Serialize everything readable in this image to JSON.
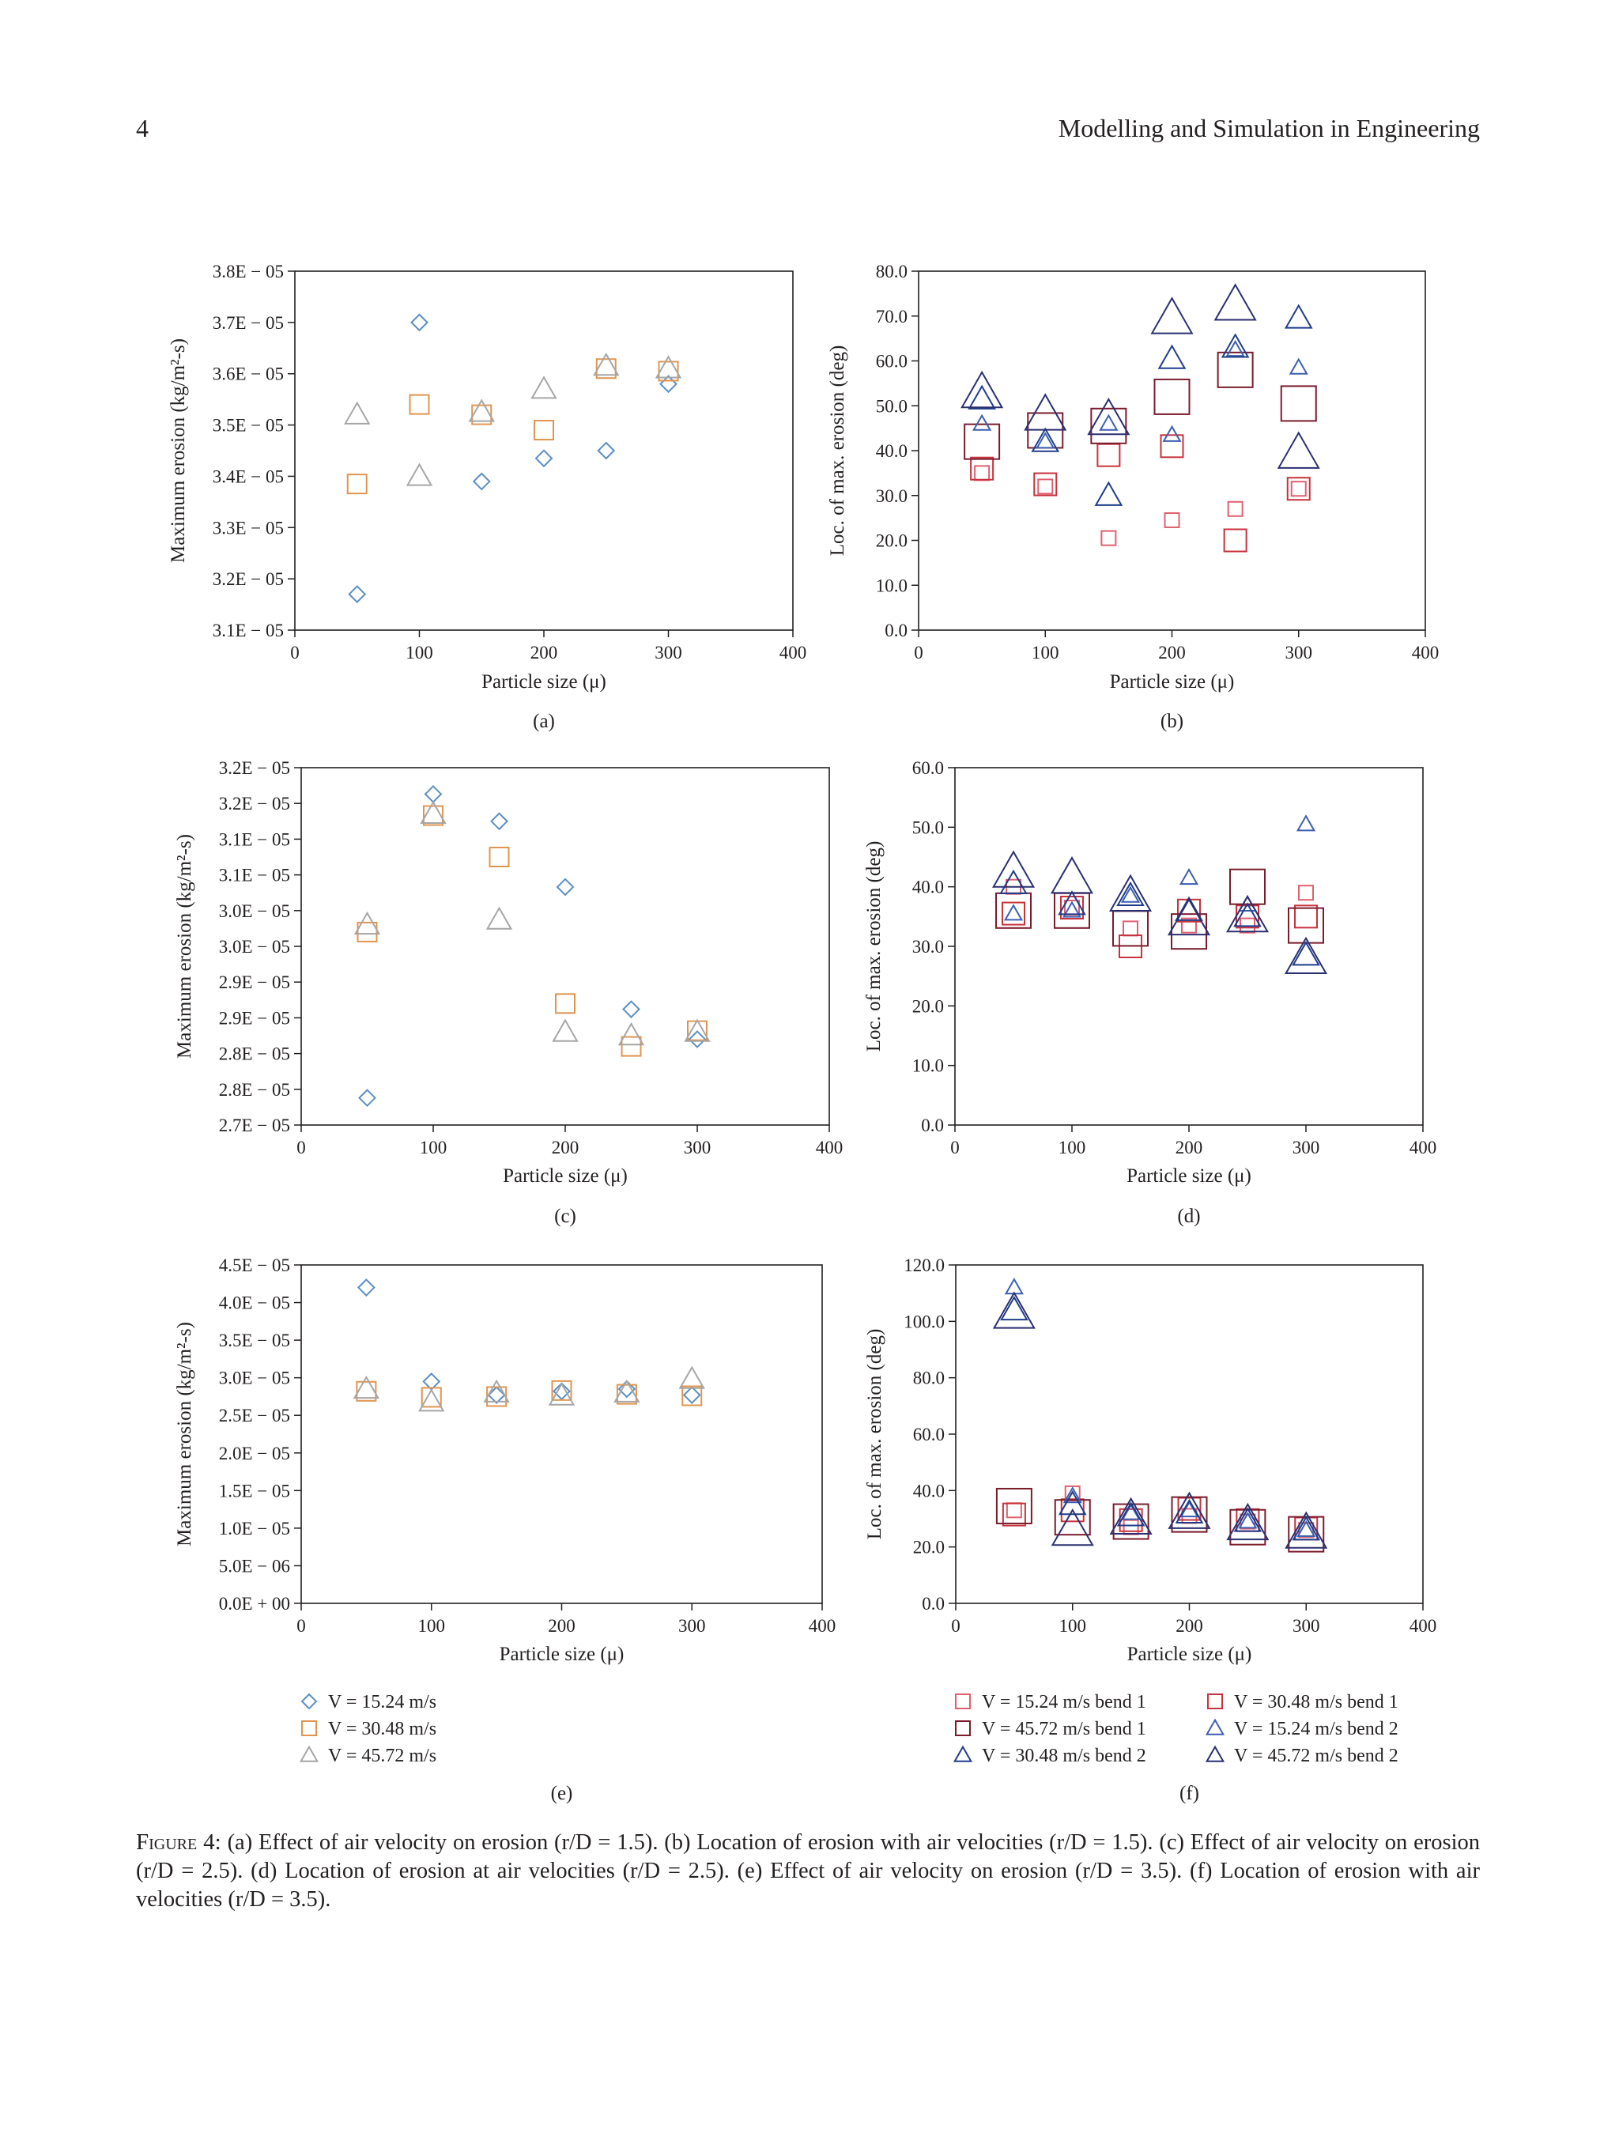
{
  "header": {
    "page_number": "4",
    "journal": "Modelling and Simulation in Engineering"
  },
  "colors": {
    "v15": "#5b8fc3",
    "v30": "#e0954f",
    "v45": "#a6a6a6",
    "b1_15": "#e06070",
    "b1_45": "#7a1c2c",
    "b1_30": "#c8323c",
    "b2_30": "#1f3d8a",
    "b2_15": "#3d5fb0",
    "b2_45": "#2a2f70"
  },
  "legend_left": [
    {
      "label": "V = 15.24 m/s",
      "marker": "diamond",
      "color_key": "v15"
    },
    {
      "label": "V = 30.48 m/s",
      "marker": "square",
      "color_key": "v30"
    },
    {
      "label": "V = 45.72 m/s",
      "marker": "triangle",
      "color_key": "v45"
    }
  ],
  "legend_right": [
    {
      "label": "V = 15.24 m/s bend 1",
      "marker": "square",
      "color_key": "b1_15"
    },
    {
      "label": "V = 30.48 m/s bend 1",
      "marker": "square",
      "color_key": "b1_30"
    },
    {
      "label": "V = 45.72 m/s bend 1",
      "marker": "square",
      "color_key": "b1_45"
    },
    {
      "label": "V = 15.24 m/s bend 2",
      "marker": "triangle",
      "color_key": "b2_15"
    },
    {
      "label": "V = 30.48 m/s bend 2",
      "marker": "triangle",
      "color_key": "b2_30"
    },
    {
      "label": "V = 45.72 m/s bend 2",
      "marker": "triangle",
      "color_key": "b2_45"
    }
  ],
  "caption": {
    "lead": "Figure 4:",
    "text": "(a) Effect of air velocity on erosion (r/D = 1.5). (b) Location of erosion with air velocities (r/D = 1.5). (c) Effect of air velocity on erosion (r/D = 2.5). (d) Location of erosion at air velocities (r/D = 2.5). (e) Effect of air velocity on erosion (r/D = 3.5). (f) Location of erosion with air velocities (r/D = 3.5)."
  },
  "chart_data": [
    {
      "id": "a",
      "type": "scatter",
      "panel_label": "(a)",
      "xlabel": "Particle size (μ)",
      "ylabel": "Maximum erosion (kg/m²-s)",
      "xlim": [
        0,
        400
      ],
      "ylim": [
        3.1e-05,
        3.8e-05
      ],
      "xticks": [
        0,
        100,
        200,
        300,
        400
      ],
      "xtick_labels": [
        "0",
        "100",
        "200",
        "300",
        "400"
      ],
      "yticks": [
        3.1e-05,
        3.2e-05,
        3.3e-05,
        3.4e-05,
        3.5e-05,
        3.6e-05,
        3.7e-05,
        3.8e-05
      ],
      "ytick_labels": [
        "3.1E − 05",
        "3.2E − 05",
        "3.3E − 05",
        "3.4E − 05",
        "3.5E − 05",
        "3.6E − 05",
        "3.7E − 05",
        "3.8E − 05"
      ],
      "series": [
        {
          "name": "V = 15.24 m/s",
          "marker": "diamond",
          "color_key": "v15",
          "x": [
            50,
            100,
            150,
            200,
            250,
            300
          ],
          "y": [
            3.17e-05,
            3.7e-05,
            3.39e-05,
            3.435e-05,
            3.45e-05,
            3.58e-05
          ]
        },
        {
          "name": "V = 30.48 m/s",
          "marker": "square",
          "color_key": "v30",
          "x": [
            50,
            100,
            150,
            200,
            250,
            300
          ],
          "y": [
            3.385e-05,
            3.54e-05,
            3.52e-05,
            3.49e-05,
            3.61e-05,
            3.605e-05
          ]
        },
        {
          "name": "V = 45.72 m/s",
          "marker": "triangle",
          "color_key": "v45",
          "x": [
            50,
            100,
            150,
            200,
            250,
            300
          ],
          "y": [
            3.52e-05,
            3.4e-05,
            3.525e-05,
            3.57e-05,
            3.615e-05,
            3.61e-05
          ]
        }
      ]
    },
    {
      "id": "b",
      "type": "scatter",
      "panel_label": "(b)",
      "xlabel": "Particle size (μ)",
      "ylabel": "Loc. of max. erosion (deg)",
      "xlim": [
        0,
        400
      ],
      "ylim": [
        0,
        80
      ],
      "xticks": [
        0,
        100,
        200,
        300,
        400
      ],
      "xtick_labels": [
        "0",
        "100",
        "200",
        "300",
        "400"
      ],
      "yticks": [
        0,
        10,
        20,
        30,
        40,
        50,
        60,
        70,
        80
      ],
      "ytick_labels": [
        "0.0",
        "10.0",
        "20.0",
        "30.0",
        "40.0",
        "50.0",
        "60.0",
        "70.0",
        "80.0"
      ],
      "series": [
        {
          "name": "V = 15.24 m/s bend 1",
          "marker": "square",
          "color_key": "b1_15",
          "size": "small",
          "x": [
            50,
            100,
            150,
            200,
            250,
            300
          ],
          "y": [
            35,
            32,
            20.5,
            24.5,
            27,
            31.5
          ]
        },
        {
          "name": "V = 30.48 m/s bend 1",
          "marker": "square",
          "color_key": "b1_30",
          "size": "medium",
          "x": [
            50,
            100,
            150,
            200,
            250,
            300
          ],
          "y": [
            36,
            32.5,
            39,
            41,
            20,
            31.5
          ]
        },
        {
          "name": "V = 45.72 m/s bend 1",
          "marker": "square",
          "color_key": "b1_45",
          "size": "large",
          "x": [
            50,
            100,
            150,
            200,
            250,
            300
          ],
          "y": [
            42,
            44.5,
            45.5,
            52,
            58,
            50.5
          ]
        },
        {
          "name": "V = 15.24 m/s bend 2",
          "marker": "triangle",
          "color_key": "b2_15",
          "size": "small",
          "x": [
            50,
            100,
            150,
            200,
            250,
            300
          ],
          "y": [
            46,
            42,
            46,
            43.5,
            62.5,
            58.5
          ]
        },
        {
          "name": "V = 30.48 m/s bend 2",
          "marker": "triangle",
          "color_key": "b2_30",
          "size": "medium",
          "x": [
            50,
            100,
            150,
            200,
            250,
            300
          ],
          "y": [
            51.5,
            42,
            30,
            60.5,
            63,
            69.5
          ]
        },
        {
          "name": "V = 45.72 m/s bend 2",
          "marker": "triangle",
          "color_key": "b2_45",
          "size": "large",
          "x": [
            50,
            100,
            150,
            200,
            250,
            300
          ],
          "y": [
            53,
            48,
            47,
            69.5,
            72.5,
            39.5
          ]
        }
      ]
    },
    {
      "id": "c",
      "type": "scatter",
      "panel_label": "(c)",
      "xlabel": "Particle size (μ)",
      "ylabel": "Maximum erosion (kg/m²-s)",
      "xlim": [
        0,
        400
      ],
      "ylim": [
        2.7e-05,
        3.2e-05
      ],
      "xticks": [
        0,
        100,
        200,
        300,
        400
      ],
      "xtick_labels": [
        "0",
        "100",
        "200",
        "300",
        "400"
      ],
      "yticks": [
        2.7e-05,
        2.75e-05,
        2.8e-05,
        2.85e-05,
        2.9e-05,
        2.95e-05,
        3e-05,
        3.05e-05,
        3.1e-05,
        3.15e-05,
        3.2e-05
      ],
      "ytick_labels": [
        "2.7E − 05",
        "2.8E − 05",
        "2.8E − 05",
        "2.9E − 05",
        "2.9E − 05",
        "3.0E − 05",
        "3.0E − 05",
        "3.1E − 05",
        "3.1E − 05",
        "3.2E − 05",
        "3.2E − 05"
      ],
      "series": [
        {
          "name": "V = 15.24 m/s",
          "marker": "diamond",
          "color_key": "v15",
          "x": [
            50,
            100,
            150,
            200,
            250,
            300
          ],
          "y": [
            2.738e-05,
            3.163e-05,
            3.125e-05,
            3.033e-05,
            2.862e-05,
            2.82e-05
          ]
        },
        {
          "name": "V = 30.48 m/s",
          "marker": "square",
          "color_key": "v30",
          "x": [
            50,
            100,
            150,
            200,
            250,
            300
          ],
          "y": [
            2.97e-05,
            3.133e-05,
            3.075e-05,
            2.87e-05,
            2.81e-05,
            2.832e-05
          ]
        },
        {
          "name": "V = 45.72 m/s",
          "marker": "triangle",
          "color_key": "v45",
          "x": [
            50,
            100,
            150,
            200,
            250,
            300
          ],
          "y": [
            2.98e-05,
            3.135e-05,
            2.987e-05,
            2.83e-05,
            2.825e-05,
            2.83e-05
          ]
        }
      ]
    },
    {
      "id": "d",
      "type": "scatter",
      "panel_label": "(d)",
      "xlabel": "Particle size (μ)",
      "ylabel": "Loc. of max. erosion (deg)",
      "xlim": [
        0,
        400
      ],
      "ylim": [
        0,
        60
      ],
      "xticks": [
        0,
        100,
        200,
        300,
        400
      ],
      "xtick_labels": [
        "0",
        "100",
        "200",
        "300",
        "400"
      ],
      "yticks": [
        0,
        10,
        20,
        30,
        40,
        50,
        60
      ],
      "ytick_labels": [
        "0.0",
        "10.0",
        "20.0",
        "30.0",
        "40.0",
        "50.0",
        "60.0"
      ],
      "series": [
        {
          "name": "V = 15.24 m/s bend 1",
          "marker": "square",
          "color_key": "b1_15",
          "size": "small",
          "x": [
            50,
            100,
            150,
            200,
            250,
            300
          ],
          "y": [
            40,
            36.5,
            33,
            33.5,
            33.5,
            39
          ]
        },
        {
          "name": "V = 30.48 m/s bend 1",
          "marker": "square",
          "color_key": "b1_30",
          "size": "medium",
          "x": [
            50,
            100,
            150,
            200,
            250,
            300
          ],
          "y": [
            35.5,
            36.5,
            30,
            36,
            35,
            35
          ]
        },
        {
          "name": "V = 45.72 m/s bend 1",
          "marker": "square",
          "color_key": "b1_45",
          "size": "large",
          "x": [
            50,
            100,
            150,
            200,
            250,
            300
          ],
          "y": [
            36,
            36,
            33,
            32.5,
            40,
            33.5
          ]
        },
        {
          "name": "V = 15.24 m/s bend 2",
          "marker": "triangle",
          "color_key": "b2_15",
          "size": "small",
          "x": [
            50,
            100,
            150,
            200,
            250,
            300
          ],
          "y": [
            35.5,
            36,
            38.5,
            41.5,
            37,
            50.5
          ]
        },
        {
          "name": "V = 30.48 m/s bend 2",
          "marker": "triangle",
          "color_key": "b2_30",
          "size": "medium",
          "x": [
            50,
            100,
            150,
            200,
            250,
            300
          ],
          "y": [
            40.5,
            37,
            38.5,
            36,
            35,
            28.5
          ]
        },
        {
          "name": "V = 45.72 m/s bend 2",
          "marker": "triangle",
          "color_key": "b2_45",
          "size": "large",
          "x": [
            50,
            100,
            150,
            200,
            250,
            300
          ],
          "y": [
            42.5,
            41.5,
            38.5,
            34.5,
            35,
            28
          ]
        }
      ]
    },
    {
      "id": "e",
      "type": "scatter",
      "panel_label": "(e)",
      "xlabel": "Particle size (μ)",
      "ylabel": "Maximum erosion (kg/m²-s)",
      "xlim": [
        0,
        400
      ],
      "ylim": [
        0,
        4.5e-05
      ],
      "xticks": [
        0,
        100,
        200,
        300,
        400
      ],
      "xtick_labels": [
        "0",
        "100",
        "200",
        "300",
        "400"
      ],
      "yticks": [
        0,
        5e-06,
        1e-05,
        1.5e-05,
        2e-05,
        2.5e-05,
        3e-05,
        3.5e-05,
        4e-05,
        4.5e-05
      ],
      "ytick_labels": [
        "0.0E + 00",
        "5.0E − 06",
        "1.0E − 05",
        "1.5E − 05",
        "2.0E − 05",
        "2.5E − 05",
        "3.0E − 05",
        "3.5E − 05",
        "4.0E − 05",
        "4.5E − 05"
      ],
      "series": [
        {
          "name": "V = 15.24 m/s",
          "marker": "diamond",
          "color_key": "v15",
          "x": [
            50,
            100,
            150,
            200,
            250,
            300
          ],
          "y": [
            4.2e-05,
            2.95e-05,
            2.77e-05,
            2.82e-05,
            2.85e-05,
            2.77e-05
          ]
        },
        {
          "name": "V = 30.48 m/s",
          "marker": "square",
          "color_key": "v30",
          "x": [
            50,
            100,
            150,
            200,
            250,
            300
          ],
          "y": [
            2.82e-05,
            2.74e-05,
            2.75e-05,
            2.83e-05,
            2.78e-05,
            2.76e-05
          ]
        },
        {
          "name": "V = 45.72 m/s",
          "marker": "triangle",
          "color_key": "v45",
          "x": [
            50,
            100,
            150,
            200,
            250,
            300
          ],
          "y": [
            2.85e-05,
            2.68e-05,
            2.8e-05,
            2.76e-05,
            2.8e-05,
            2.98e-05
          ]
        }
      ]
    },
    {
      "id": "f",
      "type": "scatter",
      "panel_label": "(f)",
      "xlabel": "Particle size (μ)",
      "ylabel": "Loc. of max. erosion (deg)",
      "xlim": [
        0,
        400
      ],
      "ylim": [
        0,
        120
      ],
      "xticks": [
        0,
        100,
        200,
        300,
        400
      ],
      "xtick_labels": [
        "0",
        "100",
        "200",
        "300",
        "400"
      ],
      "yticks": [
        0,
        20,
        40,
        60,
        80,
        100,
        120
      ],
      "ytick_labels": [
        "0.0",
        "20.0",
        "40.0",
        "60.0",
        "80.0",
        "100.0",
        "120.0"
      ],
      "series": [
        {
          "name": "V = 15.24 m/s bend 1",
          "marker": "square",
          "color_key": "b1_15",
          "size": "small",
          "x": [
            50,
            100,
            150,
            200,
            250,
            300
          ],
          "y": [
            33,
            39,
            27,
            31,
            29,
            26
          ]
        },
        {
          "name": "V = 30.48 m/s bend 1",
          "marker": "square",
          "color_key": "b1_30",
          "size": "medium",
          "x": [
            50,
            100,
            150,
            200,
            250,
            300
          ],
          "y": [
            31.5,
            33,
            29.5,
            33.5,
            29.5,
            26.5
          ]
        },
        {
          "name": "V = 45.72 m/s bend 1",
          "marker": "square",
          "color_key": "b1_45",
          "size": "large",
          "x": [
            50,
            100,
            150,
            200,
            250,
            300
          ],
          "y": [
            34.5,
            30.5,
            29,
            31.5,
            27,
            24.5
          ]
        },
        {
          "name": "V = 15.24 m/s bend 2",
          "marker": "triangle",
          "color_key": "b2_15",
          "size": "small",
          "x": [
            50,
            100,
            150,
            200,
            250,
            300
          ],
          "y": [
            112,
            38,
            32,
            33,
            29,
            26
          ]
        },
        {
          "name": "V = 30.48 m/s bend 2",
          "marker": "triangle",
          "color_key": "b2_30",
          "size": "medium",
          "x": [
            50,
            100,
            150,
            200,
            250,
            300
          ],
          "y": [
            104,
            35,
            31,
            32,
            29,
            26
          ]
        },
        {
          "name": "V = 45.72 m/s bend 2",
          "marker": "triangle",
          "color_key": "b2_45",
          "size": "large",
          "x": [
            50,
            100,
            150,
            200,
            250,
            300
          ],
          "y": [
            103,
            26,
            30,
            32,
            28,
            25
          ]
        }
      ]
    }
  ]
}
